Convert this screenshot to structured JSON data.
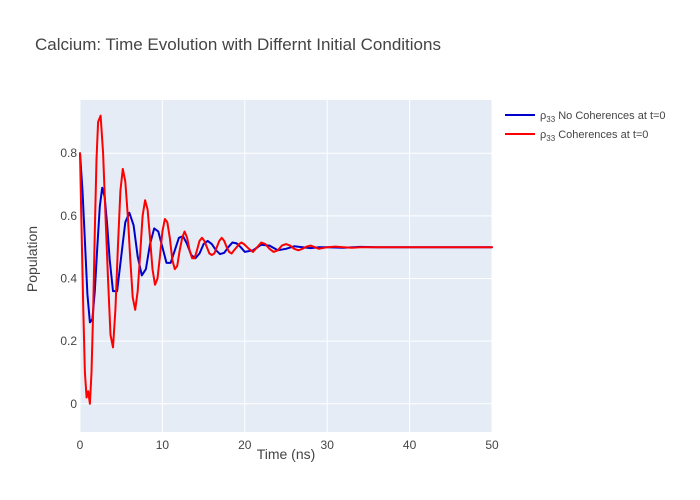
{
  "chart_data": {
    "type": "line",
    "title": "Calcium: Time Evolution with Differnt Initial Conditions",
    "xlabel": "Time (ns)",
    "ylabel": "Population",
    "xlim": [
      0,
      50
    ],
    "ylim": [
      -0.09,
      0.97
    ],
    "grid": true,
    "legend_position": "top-right",
    "x_ticks": [
      0,
      10,
      20,
      30,
      40,
      50
    ],
    "y_ticks": [
      0,
      0.2,
      0.4,
      0.6,
      0.8
    ],
    "x_tick_labels": [
      "0",
      "10",
      "20",
      "30",
      "40",
      "50"
    ],
    "y_tick_labels": [
      "0",
      "0.2",
      "0.4",
      "0.6",
      "0.8"
    ],
    "colors": {
      "plot_bg": "#e5ecf6",
      "grid": "#ffffff"
    },
    "series": [
      {
        "name_main": "ρ",
        "name_sub": "33",
        "name_rest": " No Coherences at t=0",
        "color": "#0000cc",
        "x": [
          0,
          0.3,
          0.6,
          0.9,
          1.2,
          1.5,
          1.8,
          2.1,
          2.4,
          2.7,
          3.0,
          3.3,
          3.6,
          4.0,
          4.5,
          5.0,
          5.5,
          6.0,
          6.5,
          7.0,
          7.5,
          8.0,
          8.5,
          9.0,
          9.5,
          10.0,
          10.5,
          11.0,
          11.5,
          12.0,
          12.5,
          13.0,
          13.5,
          14.0,
          14.5,
          15.0,
          15.5,
          16.0,
          16.5,
          17.0,
          17.5,
          18.0,
          18.5,
          19.0,
          19.5,
          20.0,
          21.0,
          22.0,
          23.0,
          24.0,
          25.0,
          26.0,
          27.0,
          28.0,
          29.0,
          30.0,
          32.0,
          34.0,
          36.0,
          38.0,
          40.0,
          45.0,
          50.0
        ],
        "y": [
          0.8,
          0.68,
          0.52,
          0.35,
          0.26,
          0.27,
          0.36,
          0.5,
          0.63,
          0.69,
          0.66,
          0.57,
          0.46,
          0.36,
          0.36,
          0.47,
          0.58,
          0.61,
          0.57,
          0.47,
          0.41,
          0.43,
          0.51,
          0.56,
          0.55,
          0.5,
          0.45,
          0.45,
          0.49,
          0.53,
          0.535,
          0.51,
          0.475,
          0.465,
          0.48,
          0.51,
          0.52,
          0.51,
          0.49,
          0.478,
          0.482,
          0.5,
          0.515,
          0.512,
          0.5,
          0.485,
          0.49,
          0.508,
          0.505,
          0.49,
          0.495,
          0.503,
          0.5,
          0.497,
          0.5,
          0.5,
          0.498,
          0.501,
          0.5,
          0.5,
          0.5,
          0.5,
          0.5
        ]
      },
      {
        "name_main": "ρ",
        "name_sub": "33",
        "name_rest": " Coherences  at t=0",
        "color": "#ff0000",
        "x": [
          0,
          0.2,
          0.4,
          0.6,
          0.8,
          1.0,
          1.2,
          1.4,
          1.6,
          1.8,
          2.0,
          2.2,
          2.5,
          2.8,
          3.1,
          3.4,
          3.7,
          4.0,
          4.3,
          4.6,
          4.9,
          5.2,
          5.5,
          5.8,
          6.1,
          6.4,
          6.7,
          7.0,
          7.3,
          7.6,
          7.9,
          8.2,
          8.5,
          8.8,
          9.1,
          9.4,
          9.7,
          10.0,
          10.3,
          10.6,
          10.9,
          11.2,
          11.5,
          11.8,
          12.1,
          12.4,
          12.7,
          13.0,
          13.3,
          13.6,
          13.9,
          14.2,
          14.5,
          14.8,
          15.1,
          15.4,
          15.7,
          16.0,
          16.3,
          16.6,
          16.9,
          17.2,
          17.5,
          17.8,
          18.1,
          18.4,
          18.7,
          19.0,
          19.3,
          19.6,
          19.9,
          20.5,
          21.0,
          21.5,
          22.0,
          22.5,
          23.0,
          23.5,
          24.0,
          24.5,
          25.0,
          25.5,
          26.0,
          26.5,
          27.0,
          27.5,
          28.0,
          28.5,
          29.0,
          30.0,
          31.0,
          32.0,
          33.0,
          34.0,
          36.0,
          38.0,
          40.0,
          45.0,
          50.0
        ],
        "y": [
          0.8,
          0.55,
          0.3,
          0.1,
          0.02,
          0.04,
          0.0,
          0.1,
          0.3,
          0.55,
          0.78,
          0.9,
          0.92,
          0.8,
          0.6,
          0.4,
          0.22,
          0.18,
          0.3,
          0.5,
          0.68,
          0.75,
          0.71,
          0.6,
          0.46,
          0.34,
          0.3,
          0.36,
          0.48,
          0.6,
          0.65,
          0.62,
          0.53,
          0.43,
          0.38,
          0.4,
          0.47,
          0.55,
          0.59,
          0.58,
          0.53,
          0.46,
          0.43,
          0.44,
          0.49,
          0.53,
          0.55,
          0.53,
          0.49,
          0.465,
          0.465,
          0.49,
          0.52,
          0.53,
          0.52,
          0.5,
          0.48,
          0.475,
          0.48,
          0.5,
          0.52,
          0.53,
          0.52,
          0.5,
          0.485,
          0.48,
          0.49,
          0.5,
          0.51,
          0.515,
          0.51,
          0.495,
          0.485,
          0.5,
          0.515,
          0.51,
          0.495,
          0.485,
          0.49,
          0.505,
          0.51,
          0.505,
          0.495,
          0.49,
          0.495,
          0.502,
          0.505,
          0.5,
          0.495,
          0.5,
          0.502,
          0.5,
          0.498,
          0.5,
          0.5,
          0.5,
          0.5,
          0.5,
          0.5
        ]
      }
    ]
  }
}
